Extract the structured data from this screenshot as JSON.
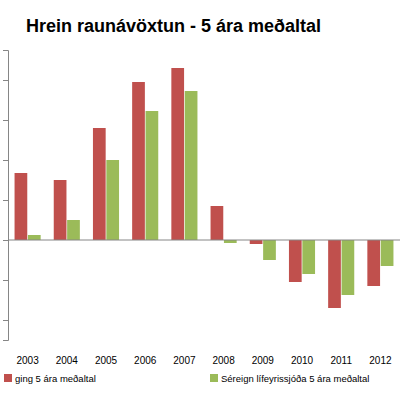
{
  "chart_data": {
    "type": "bar",
    "title": "Hrein raunávöxtun - 5 ára meðaltal",
    "categories": [
      "2003",
      "2004",
      "2005",
      "2006",
      "2007",
      "2008",
      "2009",
      "2010",
      "2011",
      "2012"
    ],
    "series": [
      {
        "name": "ging 5 ára meðaltal",
        "color": "#c0504d",
        "values": [
          3.35,
          3.0,
          5.6,
          7.9,
          8.6,
          1.7,
          -0.2,
          -2.1,
          -3.4,
          -2.3
        ]
      },
      {
        "name": "Séreign lífeyrissjóða 5 ára meðaltal",
        "color": "#9bbb59",
        "values": [
          0.25,
          1.0,
          4.0,
          6.45,
          7.45,
          -0.15,
          -1.0,
          -1.7,
          -2.75,
          -1.3
        ]
      }
    ],
    "ylim": [
      -5,
      9.5
    ],
    "yticks": [
      -4,
      -2,
      0,
      2,
      4,
      6,
      8
    ],
    "grid": false,
    "legend": "bottom",
    "tick_labels": "x"
  }
}
